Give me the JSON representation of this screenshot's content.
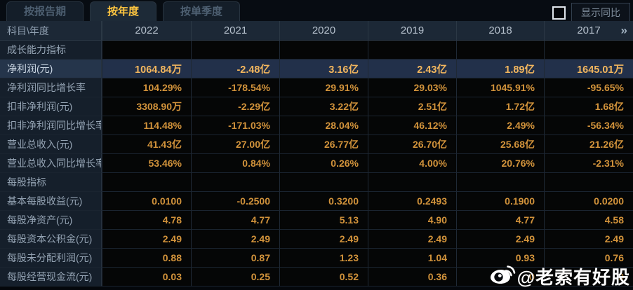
{
  "tabs": [
    {
      "label": "按报告期",
      "active": false
    },
    {
      "label": "按年度",
      "active": true
    },
    {
      "label": "按单季度",
      "active": false
    }
  ],
  "controls": {
    "show_yoy_checkbox_checked": false,
    "show_yoy_label": "显示同比"
  },
  "table": {
    "corner_label": "科目\\年度",
    "years": [
      "2022",
      "2021",
      "2020",
      "2019",
      "2018",
      "2017"
    ],
    "more_columns_icon": "»",
    "rows": [
      {
        "type": "section",
        "label": "成长能力指标",
        "values": [
          "",
          "",
          "",
          "",
          "",
          ""
        ]
      },
      {
        "type": "data",
        "label": "净利润(元)",
        "highlight": true,
        "values": [
          "1064.84万",
          "-2.48亿",
          "3.16亿",
          "2.43亿",
          "1.89亿",
          "1645.01万"
        ]
      },
      {
        "type": "data",
        "label": "净利润同比增长率",
        "values": [
          "104.29%",
          "-178.54%",
          "29.91%",
          "29.03%",
          "1045.91%",
          "-95.65%"
        ]
      },
      {
        "type": "data",
        "label": "扣非净利润(元)",
        "values": [
          "3308.90万",
          "-2.29亿",
          "3.22亿",
          "2.51亿",
          "1.72亿",
          "1.68亿"
        ]
      },
      {
        "type": "data",
        "label": "扣非净利润同比增长率",
        "values": [
          "114.48%",
          "-171.03%",
          "28.04%",
          "46.12%",
          "2.49%",
          "-56.34%"
        ]
      },
      {
        "type": "data",
        "label": "营业总收入(元)",
        "values": [
          "41.43亿",
          "27.00亿",
          "26.77亿",
          "26.70亿",
          "25.68亿",
          "21.26亿"
        ]
      },
      {
        "type": "data",
        "label": "营业总收入同比增长率",
        "values": [
          "53.46%",
          "0.84%",
          "0.26%",
          "4.00%",
          "20.76%",
          "-2.31%"
        ]
      },
      {
        "type": "section",
        "label": "每股指标",
        "values": [
          "",
          "",
          "",
          "",
          "",
          ""
        ]
      },
      {
        "type": "data",
        "label": "基本每股收益(元)",
        "values": [
          "0.0100",
          "-0.2500",
          "0.3200",
          "0.2493",
          "0.1900",
          "0.0200"
        ]
      },
      {
        "type": "data",
        "label": "每股净资产(元)",
        "values": [
          "4.78",
          "4.77",
          "5.13",
          "4.90",
          "4.77",
          "4.58"
        ]
      },
      {
        "type": "data",
        "label": "每股资本公积金(元)",
        "values": [
          "2.49",
          "2.49",
          "2.49",
          "2.49",
          "2.49",
          "2.49"
        ]
      },
      {
        "type": "data",
        "label": "每股未分配利润(元)",
        "values": [
          "0.88",
          "0.87",
          "1.23",
          "1.04",
          "0.93",
          "0.76"
        ]
      },
      {
        "type": "data",
        "label": "每股经营现金流(元)",
        "values": [
          "0.03",
          "0.25",
          "0.52",
          "0.36",
          "0",
          "9"
        ],
        "values_obscured_by_watermark": [
          4,
          5
        ]
      }
    ]
  },
  "watermark": {
    "icon": "weibo-icon",
    "text": "@老索有好股"
  },
  "colors": {
    "value_gold": "#d2933b",
    "highlight_gold": "#f2b65e",
    "active_tab_text": "#ffc640",
    "header_bg": "#1c2836",
    "label_bg": "#151f2b",
    "highlight_row_bg": "#22304a",
    "value_bg": "#050606"
  }
}
